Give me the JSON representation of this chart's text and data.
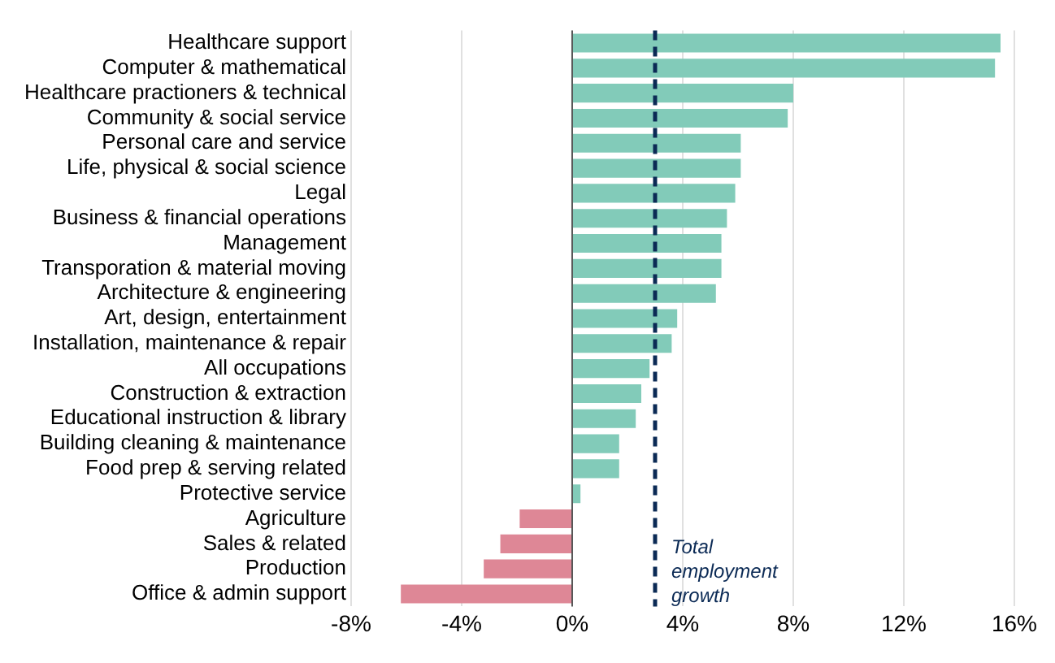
{
  "chart_data": {
    "type": "bar",
    "orientation": "horizontal",
    "categories": [
      "Healthcare support",
      "Computer & mathematical",
      "Healthcare practioners & technical",
      "Community & social service",
      "Personal care and service",
      "Life, physical & social science",
      "Legal",
      "Business & financial operations",
      "Management",
      "Transporation & material moving",
      "Architecture & engineering",
      "Art, design, entertainment",
      "Installation, maintenance & repair",
      "All occupations",
      "Construction & extraction",
      "Educational instruction & library",
      "Building cleaning & maintenance",
      "Food prep & serving related",
      "Protective service",
      "Agriculture",
      "Sales & related",
      "Production",
      "Office & admin support"
    ],
    "values": [
      15.5,
      15.3,
      8.0,
      7.8,
      6.1,
      6.1,
      5.9,
      5.6,
      5.4,
      5.4,
      5.2,
      3.8,
      3.6,
      2.8,
      2.5,
      2.3,
      1.7,
      1.7,
      0.3,
      -1.9,
      -2.6,
      -3.2,
      -6.2
    ],
    "colors": [
      "#82cbb9",
      "#82cbb9",
      "#82cbb9",
      "#82cbb9",
      "#82cbb9",
      "#82cbb9",
      "#82cbb9",
      "#82cbb9",
      "#82cbb9",
      "#82cbb9",
      "#82cbb9",
      "#82cbb9",
      "#82cbb9",
      "#82cbb9",
      "#82cbb9",
      "#82cbb9",
      "#82cbb9",
      "#82cbb9",
      "#82cbb9",
      "#de8796",
      "#de8796",
      "#de8796",
      "#de8796"
    ],
    "xlim": [
      -8,
      16
    ],
    "xticks": [
      {
        "value": -8,
        "label": "-8%"
      },
      {
        "value": -4,
        "label": "-4%"
      },
      {
        "value": 0,
        "label": "0%"
      },
      {
        "value": 4,
        "label": "4%"
      },
      {
        "value": 8,
        "label": "8%"
      },
      {
        "value": 12,
        "label": "12%"
      },
      {
        "value": 16,
        "label": "16%"
      }
    ],
    "grid": "x",
    "legend": false,
    "ref_lines": [
      {
        "axis": "x",
        "value": 3.0,
        "label": "Total employment growth",
        "color": "#0b2a55",
        "line_style": "dashed"
      }
    ]
  }
}
